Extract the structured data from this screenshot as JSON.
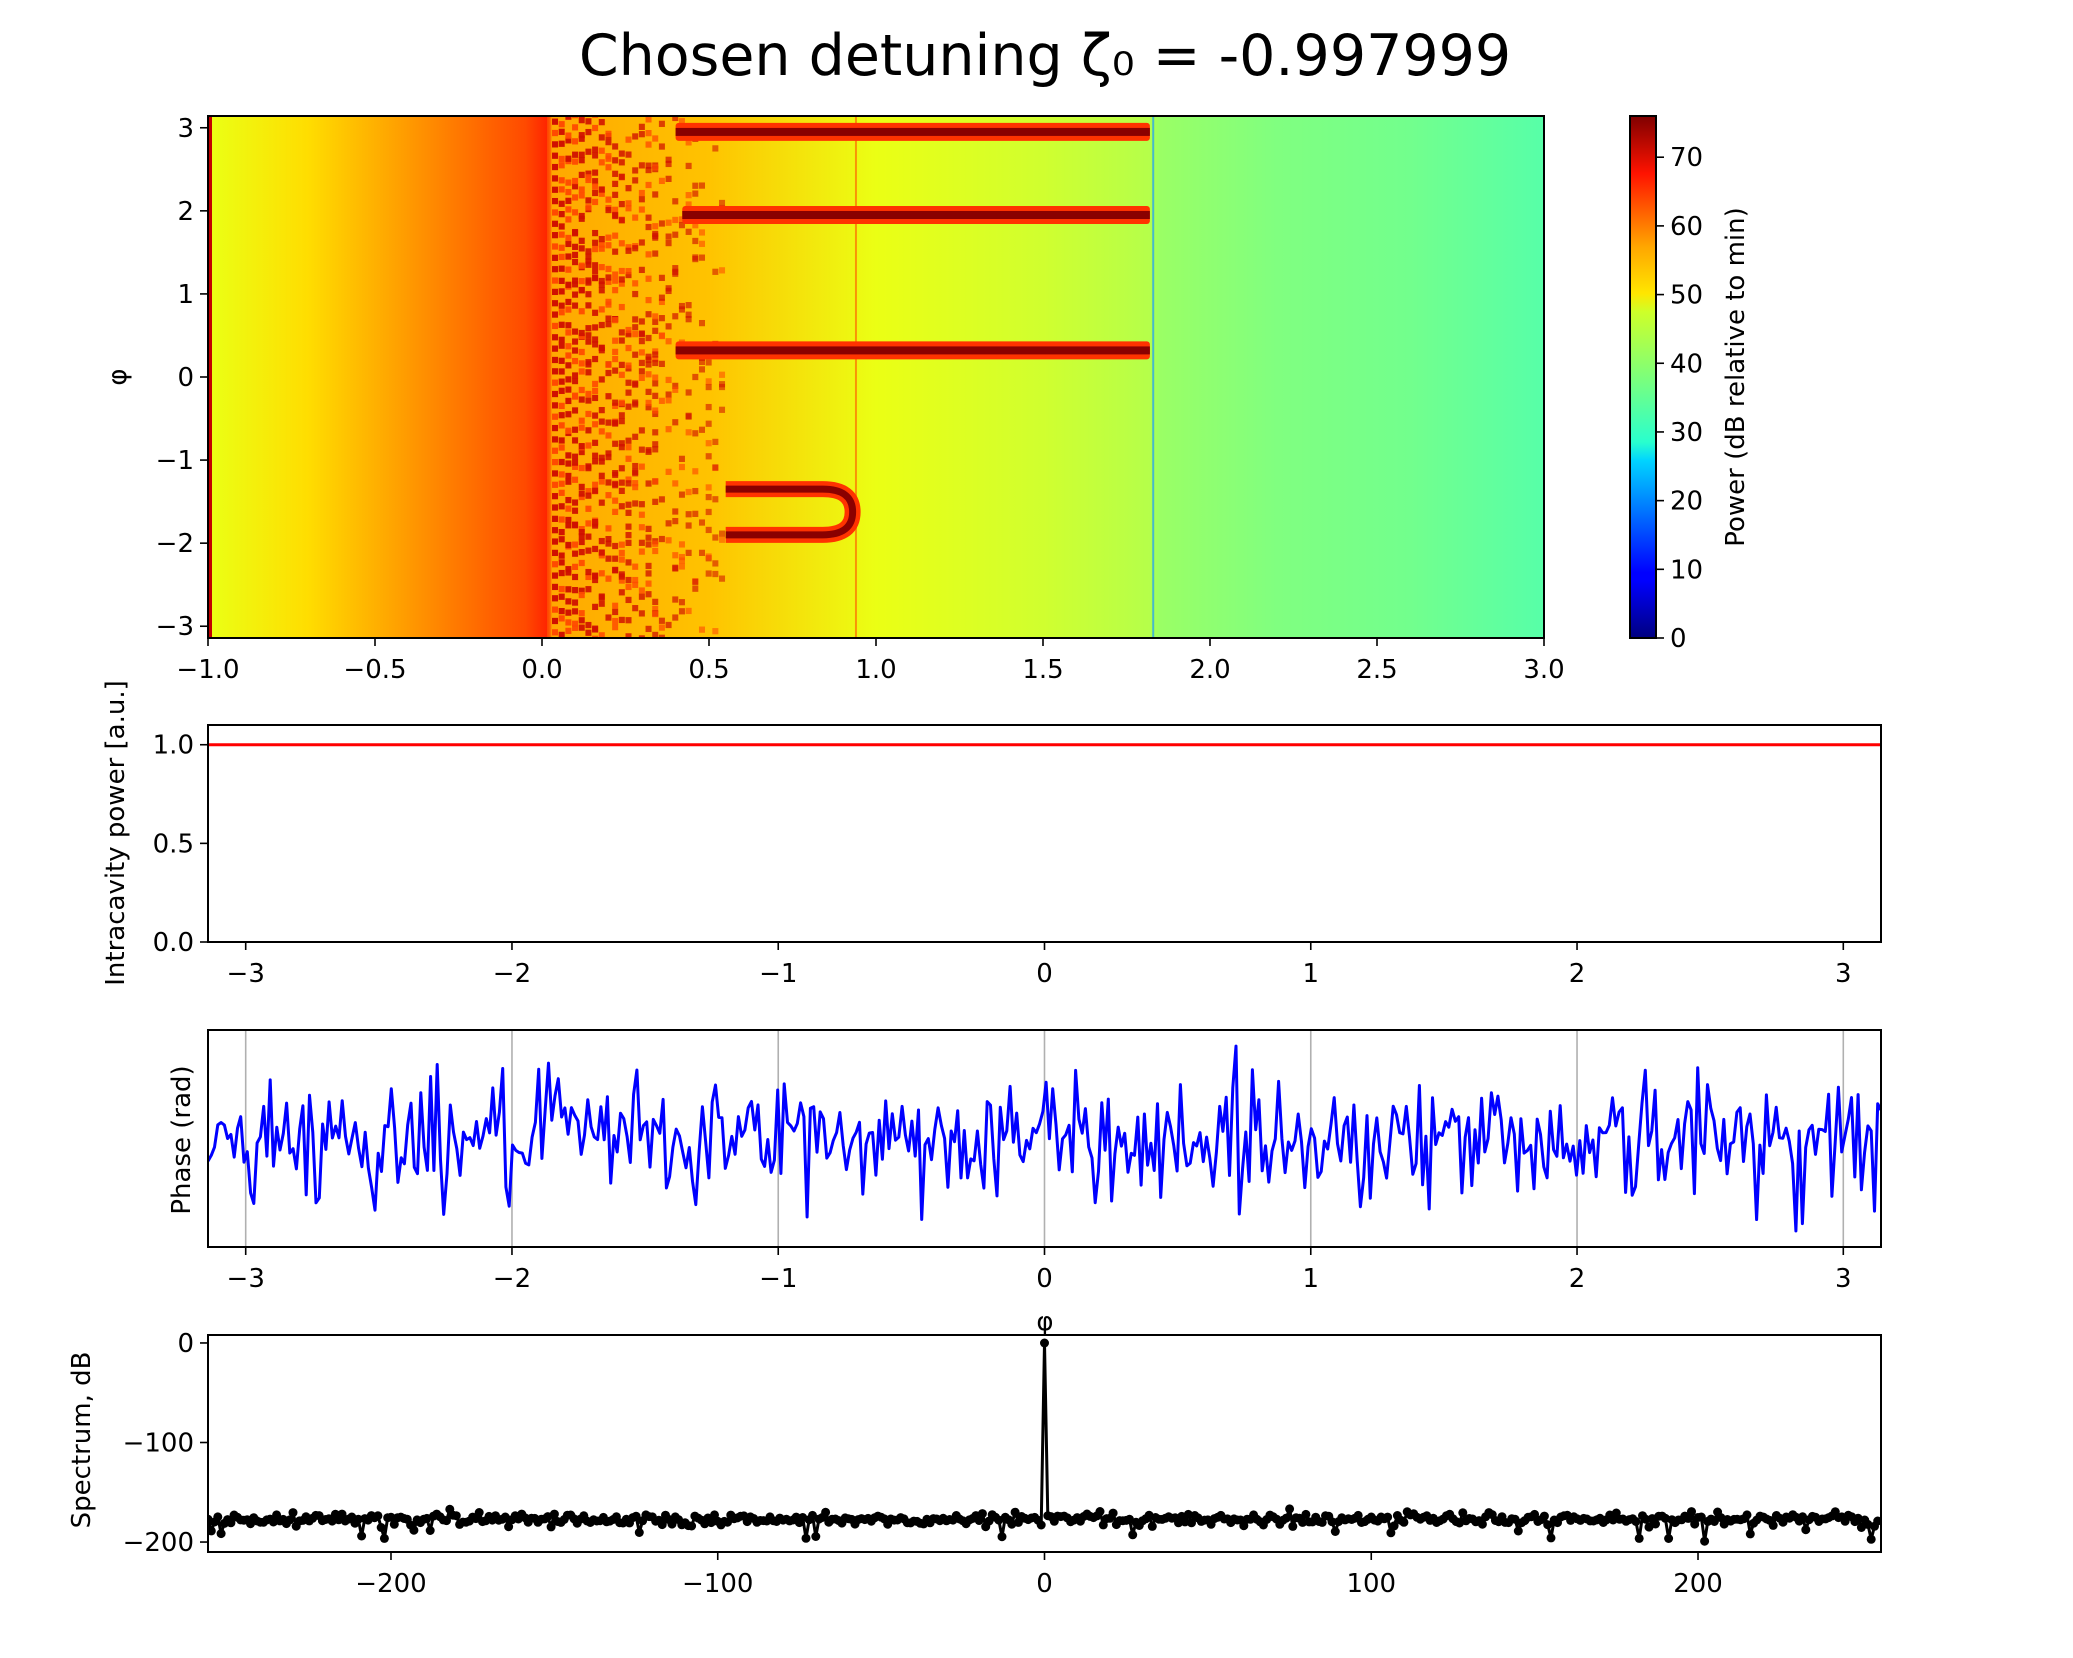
{
  "figure": {
    "title": "Chosen detuning ζ₀ = -0.997999"
  },
  "chart_data": [
    {
      "type": "heatmap",
      "name": "detuning-map",
      "xlabel": "",
      "ylabel": "φ",
      "xlim": [
        -1.0,
        3.0
      ],
      "ylim": [
        -3.14159,
        3.14159
      ],
      "xticks": [
        -1.0,
        -0.5,
        0.0,
        0.5,
        1.0,
        1.5,
        2.0,
        2.5,
        3.0
      ],
      "xtick_labels": [
        "−1.0",
        "−0.5",
        "0.0",
        "0.5",
        "1.0",
        "1.5",
        "2.0",
        "2.5",
        "3.0"
      ],
      "yticks": [
        3,
        2,
        1,
        0,
        -1,
        -2,
        -3
      ],
      "ytick_labels": [
        "3",
        "2",
        "1",
        "0",
        "−1",
        "−2",
        "−3"
      ],
      "colorbar": {
        "label": "Power (dB relative to min)",
        "range": [
          0,
          76
        ],
        "ticks": [
          0,
          10,
          20,
          30,
          40,
          50,
          60,
          70
        ],
        "tick_labels": [
          "0",
          "10",
          "20",
          "30",
          "40",
          "50",
          "60",
          "70"
        ],
        "colormap": "jet"
      },
      "background_power_profile": {
        "x": [
          -1.0,
          -0.99,
          -0.7,
          -0.4,
          -0.05,
          0.02,
          0.03,
          0.5,
          1.0,
          1.5,
          1.82,
          1.85,
          2.2,
          2.6,
          3.0
        ],
        "db": [
          71,
          46,
          50,
          55,
          61,
          64,
          54,
          52,
          46,
          44,
          42,
          40,
          38,
          37,
          35
        ]
      },
      "soliton_traces": [
        {
          "phi": 2.95,
          "x_start": 0.4,
          "x_end": 1.82
        },
        {
          "phi": 1.95,
          "x_start": 0.42,
          "x_end": 1.82
        },
        {
          "phi": 0.32,
          "x_start": 0.4,
          "x_end": 1.82
        },
        {
          "phi_upper": -1.35,
          "phi_lower": -1.9,
          "x_start": 0.55,
          "x_end": 0.93
        }
      ],
      "boundaries_x": [
        0.02,
        0.94,
        1.83
      ]
    },
    {
      "type": "line",
      "name": "intracavity-power",
      "xlabel": "",
      "ylabel": "Intracavity power [a.u.]",
      "xlim": [
        -3.14159,
        3.14159
      ],
      "ylim": [
        0.0,
        1.1
      ],
      "xticks": [
        -3,
        -2,
        -1,
        0,
        1,
        2,
        3
      ],
      "xtick_labels": [
        "−3",
        "−2",
        "−1",
        "0",
        "1",
        "2",
        "3"
      ],
      "yticks": [
        0.0,
        0.5,
        1.0
      ],
      "ytick_labels": [
        "0.0",
        "0.5",
        "1.0"
      ],
      "series": [
        {
          "color": "#ff0000",
          "x": [
            -3.14159,
            3.14159
          ],
          "y": [
            1.0,
            1.0
          ]
        }
      ]
    },
    {
      "type": "line",
      "name": "phase",
      "xlabel": "φ",
      "ylabel": "Phase (rad)",
      "xlim": [
        -3.14159,
        3.14159
      ],
      "grid": true,
      "xticks": [
        -3,
        -2,
        -1,
        0,
        1,
        2,
        3
      ],
      "xtick_labels": [
        "−3",
        "−2",
        "−1",
        "0",
        "1",
        "2",
        "3"
      ],
      "series": [
        {
          "color": "#0000ff",
          "points": 512,
          "x_range": [
            -3.14159,
            3.14159
          ],
          "mean": 0.0,
          "spread": 1.0
        }
      ]
    },
    {
      "type": "scatter",
      "name": "spectrum",
      "xlabel": "",
      "ylabel": "Spectrum, dB",
      "xlim": [
        -256,
        256
      ],
      "ylim": [
        -210,
        8
      ],
      "xticks": [
        -200,
        -100,
        0,
        100,
        200
      ],
      "xtick_labels": [
        "−200",
        "−100",
        "0",
        "100",
        "200"
      ],
      "yticks": [
        0,
        -100,
        -200
      ],
      "ytick_labels": [
        "0",
        "−100",
        "−200"
      ],
      "series": [
        {
          "color": "#000000",
          "x_range": [
            -256,
            255
          ],
          "noise_floor_db": -177,
          "peak": {
            "x": 0,
            "y": 0
          }
        }
      ]
    }
  ]
}
